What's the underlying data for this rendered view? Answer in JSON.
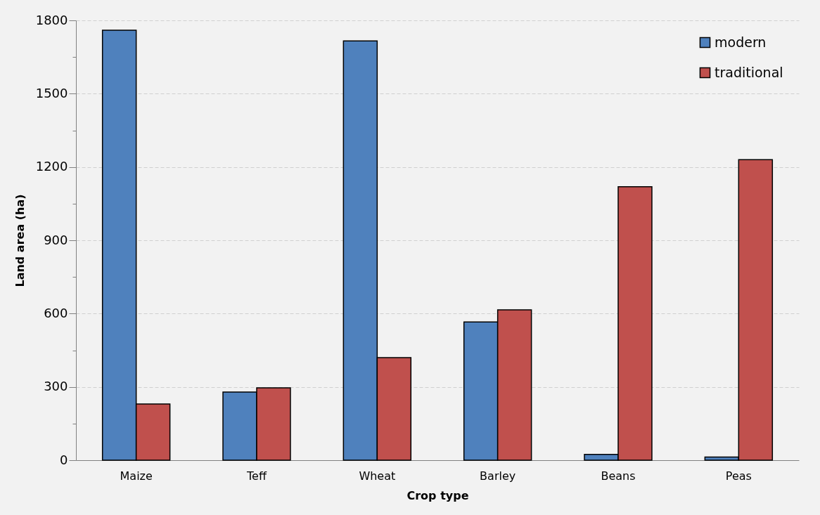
{
  "chart_data": {
    "type": "bar",
    "xlabel": "Crop type",
    "ylabel": "Land area (ha)",
    "categories": [
      "Maize",
      "Teff",
      "Wheat",
      "Barley",
      "Beans",
      "Peas"
    ],
    "series": [
      {
        "name": "modern",
        "color": "#4f81bd",
        "values": [
          1760,
          279,
          1716,
          566,
          24,
          13
        ]
      },
      {
        "name": "traditional",
        "color": "#c0504d",
        "values": [
          230,
          296,
          420,
          615,
          1119,
          1230
        ]
      }
    ],
    "ylim": [
      0,
      1800
    ],
    "yticks": [
      0,
      {
        "value": 150,
        "label": null
      },
      300,
      {
        "value": 450,
        "label": null
      },
      600,
      {
        "value": 750,
        "label": null
      },
      900,
      {
        "value": 1050,
        "label": null
      },
      1200,
      {
        "value": 1350,
        "label": null
      },
      1500,
      {
        "value": 1650,
        "label": null
      },
      1800
    ],
    "grid": "y",
    "legend": "top right"
  }
}
